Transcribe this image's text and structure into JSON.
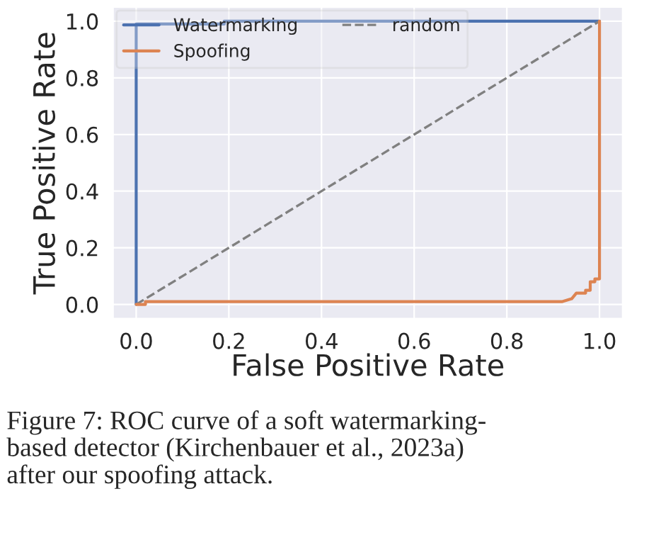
{
  "chart_data": {
    "type": "line",
    "xlabel": "False Positive Rate",
    "ylabel": "True Positive Rate",
    "xlim": [
      -0.05,
      1.05
    ],
    "ylim": [
      -0.05,
      1.05
    ],
    "xticks": [
      {
        "value": 0,
        "label": "0.0"
      },
      0.2,
      0.4,
      0.6,
      0.8,
      {
        "value": 1,
        "label": "1.0"
      }
    ],
    "yticks": [
      {
        "value": 0,
        "label": "0.0"
      },
      0.2,
      0.4,
      0.6,
      0.8,
      {
        "value": 1,
        "label": "1.0"
      }
    ],
    "grid": true,
    "legend": "top left",
    "marker": "none",
    "series": [
      {
        "name": "Watermarking",
        "color": "#4c72b0",
        "line_style": "solid",
        "x": [
          0,
          0,
          0.19,
          0.19,
          1.0
        ],
        "values": [
          0,
          0.99,
          0.99,
          1.0,
          1.0
        ]
      },
      {
        "name": "random",
        "color": "#808080",
        "line_style": "dashed",
        "x": [
          0,
          1.0
        ],
        "values": [
          0,
          1.0
        ]
      },
      {
        "name": "Spoofing",
        "color": "#dd8452",
        "line_style": "solid",
        "x": [
          0,
          0.02,
          0.02,
          0.92,
          0.94,
          0.95,
          0.97,
          0.97,
          0.98,
          0.98,
          0.99,
          0.99,
          1.0,
          1.0
        ],
        "values": [
          0,
          0,
          0.01,
          0.01,
          0.02,
          0.04,
          0.04,
          0.05,
          0.05,
          0.08,
          0.08,
          0.09,
          0.09,
          1.0
        ]
      }
    ],
    "annotations": [
      "Figure 7: ROC curve of a soft watermarking-\nbased detector (Kirchenbauer et al., 2023a)\nafter our spoofing attack."
    ]
  }
}
